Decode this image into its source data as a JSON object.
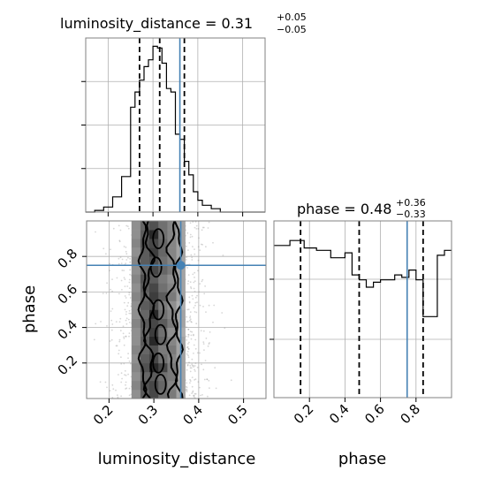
{
  "chart_data": [
    {
      "type": "histogram",
      "panel": "luminosity_distance-marginal",
      "title": {
        "prefix": "luminosity_distance = ",
        "median": "0.31",
        "upper_err": "+0.05",
        "lower_err": "−0.05"
      },
      "xlim": [
        0.15,
        0.55
      ],
      "bins": {
        "edges": [
          0.15,
          0.17,
          0.19,
          0.21,
          0.23,
          0.25,
          0.26,
          0.27,
          0.28,
          0.29,
          0.3,
          0.31,
          0.32,
          0.33,
          0.34,
          0.35,
          0.36,
          0.37,
          0.38,
          0.39,
          0.4,
          0.41,
          0.43,
          0.45,
          0.47,
          0.49,
          0.55
        ],
        "counts": [
          0.0,
          0.01,
          0.03,
          0.09,
          0.21,
          0.62,
          0.71,
          0.78,
          0.86,
          0.9,
          0.98,
          0.97,
          0.88,
          0.73,
          0.71,
          0.46,
          0.43,
          0.3,
          0.22,
          0.12,
          0.07,
          0.04,
          0.02,
          0.0,
          0.0,
          0.0
        ]
      },
      "quantiles": [
        0.27,
        0.315,
        0.37
      ],
      "truth": 0.36,
      "x_ticks": [
        0.2,
        0.3,
        0.4,
        0.5
      ],
      "grid": true
    },
    {
      "type": "histogram",
      "panel": "phase-marginal",
      "title": {
        "prefix": "phase = ",
        "median": "0.48",
        "upper_err": "+0.36",
        "lower_err": "−0.33"
      },
      "xlim": [
        0.0,
        1.0
      ],
      "bins": {
        "edges": [
          0.0,
          0.09,
          0.17,
          0.24,
          0.32,
          0.4,
          0.44,
          0.48,
          0.52,
          0.56,
          0.6,
          0.64,
          0.68,
          0.72,
          0.76,
          0.8,
          0.84,
          0.88,
          0.92,
          0.96,
          1.0
        ],
        "counts": [
          0.62,
          0.64,
          0.61,
          0.6,
          0.57,
          0.59,
          0.5,
          0.48,
          0.45,
          0.47,
          0.48,
          0.48,
          0.5,
          0.49,
          0.52,
          0.48,
          0.33,
          0.33,
          0.58,
          0.6
        ]
      },
      "y_extent": 1.0,
      "quantiles": [
        0.15,
        0.48,
        0.84
      ],
      "truth": 0.75,
      "x_ticks": [
        0.2,
        0.4,
        0.6,
        0.8
      ],
      "xlabel": "phase",
      "grid": true
    },
    {
      "type": "heatmap",
      "panel": "joint-2d",
      "xlabel": "luminosity_distance",
      "ylabel": "phase",
      "xlim": [
        0.15,
        0.55
      ],
      "ylim": [
        0.0,
        1.0
      ],
      "x_ticks": [
        0.2,
        0.3,
        0.4,
        0.5
      ],
      "y_ticks": [
        0.2,
        0.4,
        0.6,
        0.8
      ],
      "truth": {
        "x": 0.36,
        "y": 0.75
      },
      "x_edges": [
        0.25,
        0.27,
        0.29,
        0.31,
        0.33,
        0.35,
        0.37
      ],
      "y_edges": [
        0.0,
        0.05,
        0.1,
        0.15,
        0.2,
        0.25,
        0.3,
        0.35,
        0.4,
        0.45,
        0.5,
        0.55,
        0.6,
        0.65,
        0.7,
        0.75,
        0.8,
        0.85,
        0.9,
        0.95,
        1.0
      ],
      "density": [
        [
          0.45,
          0.7,
          0.8,
          0.6,
          0.55,
          0.35
        ],
        [
          0.5,
          0.75,
          0.8,
          0.65,
          0.5,
          0.35
        ],
        [
          0.45,
          0.65,
          0.7,
          0.6,
          0.55,
          0.35
        ],
        [
          0.5,
          0.75,
          0.95,
          0.8,
          0.55,
          0.35
        ],
        [
          0.45,
          0.7,
          0.8,
          0.6,
          0.5,
          0.35
        ],
        [
          0.5,
          0.65,
          0.75,
          0.55,
          0.55,
          0.35
        ],
        [
          0.45,
          0.7,
          0.95,
          0.65,
          0.5,
          0.35
        ],
        [
          0.45,
          0.65,
          0.85,
          0.6,
          0.45,
          0.3
        ],
        [
          0.5,
          0.7,
          0.8,
          0.7,
          0.55,
          0.35
        ],
        [
          0.45,
          0.65,
          0.95,
          0.6,
          0.5,
          0.35
        ],
        [
          0.45,
          0.7,
          0.75,
          0.55,
          0.45,
          0.3
        ],
        [
          0.5,
          0.65,
          0.85,
          0.7,
          0.55,
          0.35
        ],
        [
          0.45,
          0.7,
          0.8,
          0.6,
          0.5,
          0.35
        ],
        [
          0.5,
          0.75,
          0.7,
          0.55,
          0.45,
          0.35
        ],
        [
          0.45,
          0.65,
          0.8,
          0.65,
          0.55,
          0.35
        ],
        [
          0.5,
          0.7,
          0.75,
          0.6,
          0.5,
          0.35
        ],
        [
          0.45,
          0.7,
          0.85,
          0.65,
          0.5,
          0.35
        ],
        [
          0.5,
          0.75,
          0.8,
          0.65,
          0.5,
          0.35
        ],
        [
          0.45,
          0.7,
          0.95,
          0.6,
          0.5,
          0.35
        ],
        [
          0.45,
          0.65,
          0.75,
          0.6,
          0.5,
          0.35
        ]
      ],
      "contours": [
        {
          "level": "outer-left",
          "x_center": 0.275,
          "amplitude": 0.006
        },
        {
          "level": "outer-right",
          "x_center": 0.355,
          "amplitude": 0.006
        },
        {
          "level": "inner-left",
          "x_center": 0.29,
          "amplitude": 0.008
        },
        {
          "level": "inner-right",
          "x_center": 0.34,
          "amplitude": 0.008
        }
      ],
      "scatter_spread": {
        "x_mean": 0.315,
        "x_sd": 0.05
      },
      "grid": true
    }
  ],
  "colors": {
    "hist": "#000000",
    "quantile": "#000000",
    "truth": "#4682b4",
    "grid": "#b0b0b0",
    "heat_low": "#ffffff",
    "heat_high": "#1a1a1a",
    "scatter": "#8c8c8c",
    "frame": "#808080"
  }
}
